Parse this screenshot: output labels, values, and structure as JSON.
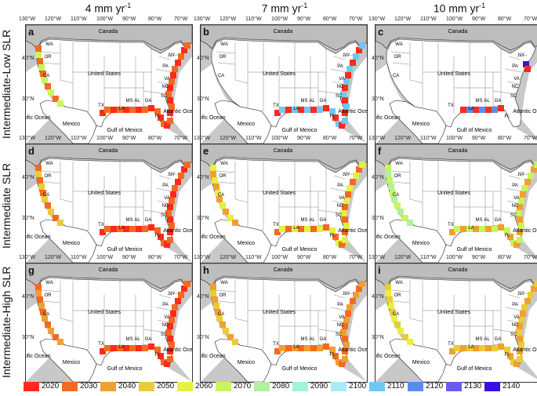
{
  "columns": [
    {
      "label": "4 mm yr",
      "sup": "-1"
    },
    {
      "label": "7 mm yr",
      "sup": "-1"
    },
    {
      "label": "10 mm yr",
      "sup": "-1"
    }
  ],
  "rows": [
    "Intermediate-Low SLR",
    "Intermediate SLR",
    "Intermediate-High SLR"
  ],
  "panels": [
    "a",
    "b",
    "c",
    "d",
    "e",
    "f",
    "g",
    "h",
    "i"
  ],
  "lon_ticks": [
    "130°W",
    "120°W",
    "110°W",
    "100°W",
    "90°W",
    "80°W",
    "70°W"
  ],
  "lat_ticks": [
    "40°N",
    "30°N"
  ],
  "map_labels": {
    "canada": "Canada",
    "us": "United States",
    "mexico": "Mexico",
    "gulf": "Gulf of Mexico",
    "atlantic": "Atlantic Ocean",
    "pacific": "Pacific Ocean",
    "states": [
      "WA",
      "OR",
      "CA",
      "TX",
      "LA",
      "MS",
      "AL",
      "GA",
      "FL",
      "SC",
      "NC",
      "VA",
      "PA",
      "NY"
    ]
  },
  "legend": {
    "items": [
      {
        "year": "2020",
        "color": "#ff2a1a"
      },
      {
        "year": "2030",
        "color": "#f26a22"
      },
      {
        "year": "2040",
        "color": "#f0a030"
      },
      {
        "year": "2050",
        "color": "#e8cc38"
      },
      {
        "year": "2060",
        "color": "#e6f040"
      },
      {
        "year": "2070",
        "color": "#c8f55a"
      },
      {
        "year": "2080",
        "color": "#b0f0a0"
      },
      {
        "year": "2090",
        "color": "#a0f5d8"
      },
      {
        "year": "2100",
        "color": "#a8ecf8"
      },
      {
        "year": "2110",
        "color": "#6ec8f5"
      },
      {
        "year": "2120",
        "color": "#5a8cf0"
      },
      {
        "year": "2130",
        "color": "#6a5cf0"
      },
      {
        "year": "2140",
        "color": "#3a10e0"
      }
    ]
  },
  "panel_colors": {
    "a": [
      "#ff2a1a",
      "#f26a22",
      "#c8f55a"
    ],
    "b": [
      "#ff2a1a",
      "#6ec8f5",
      "#f0a030"
    ],
    "c": [
      "#ff2a1a",
      "#5a8cf0",
      "#3a10e0"
    ],
    "d": [
      "#ff2a1a",
      "#f26a22",
      "#e8cc38"
    ],
    "e": [
      "#f26a22",
      "#e6f040",
      "#f0a030"
    ],
    "f": [
      "#f0a030",
      "#c8f55a",
      "#b0f0a0"
    ],
    "g": [
      "#ff2a1a",
      "#f26a22",
      "#f0a030"
    ],
    "h": [
      "#f26a22",
      "#f0a030",
      "#e8cc38"
    ],
    "i": [
      "#f0a030",
      "#e8cc38",
      "#e6f040"
    ]
  }
}
